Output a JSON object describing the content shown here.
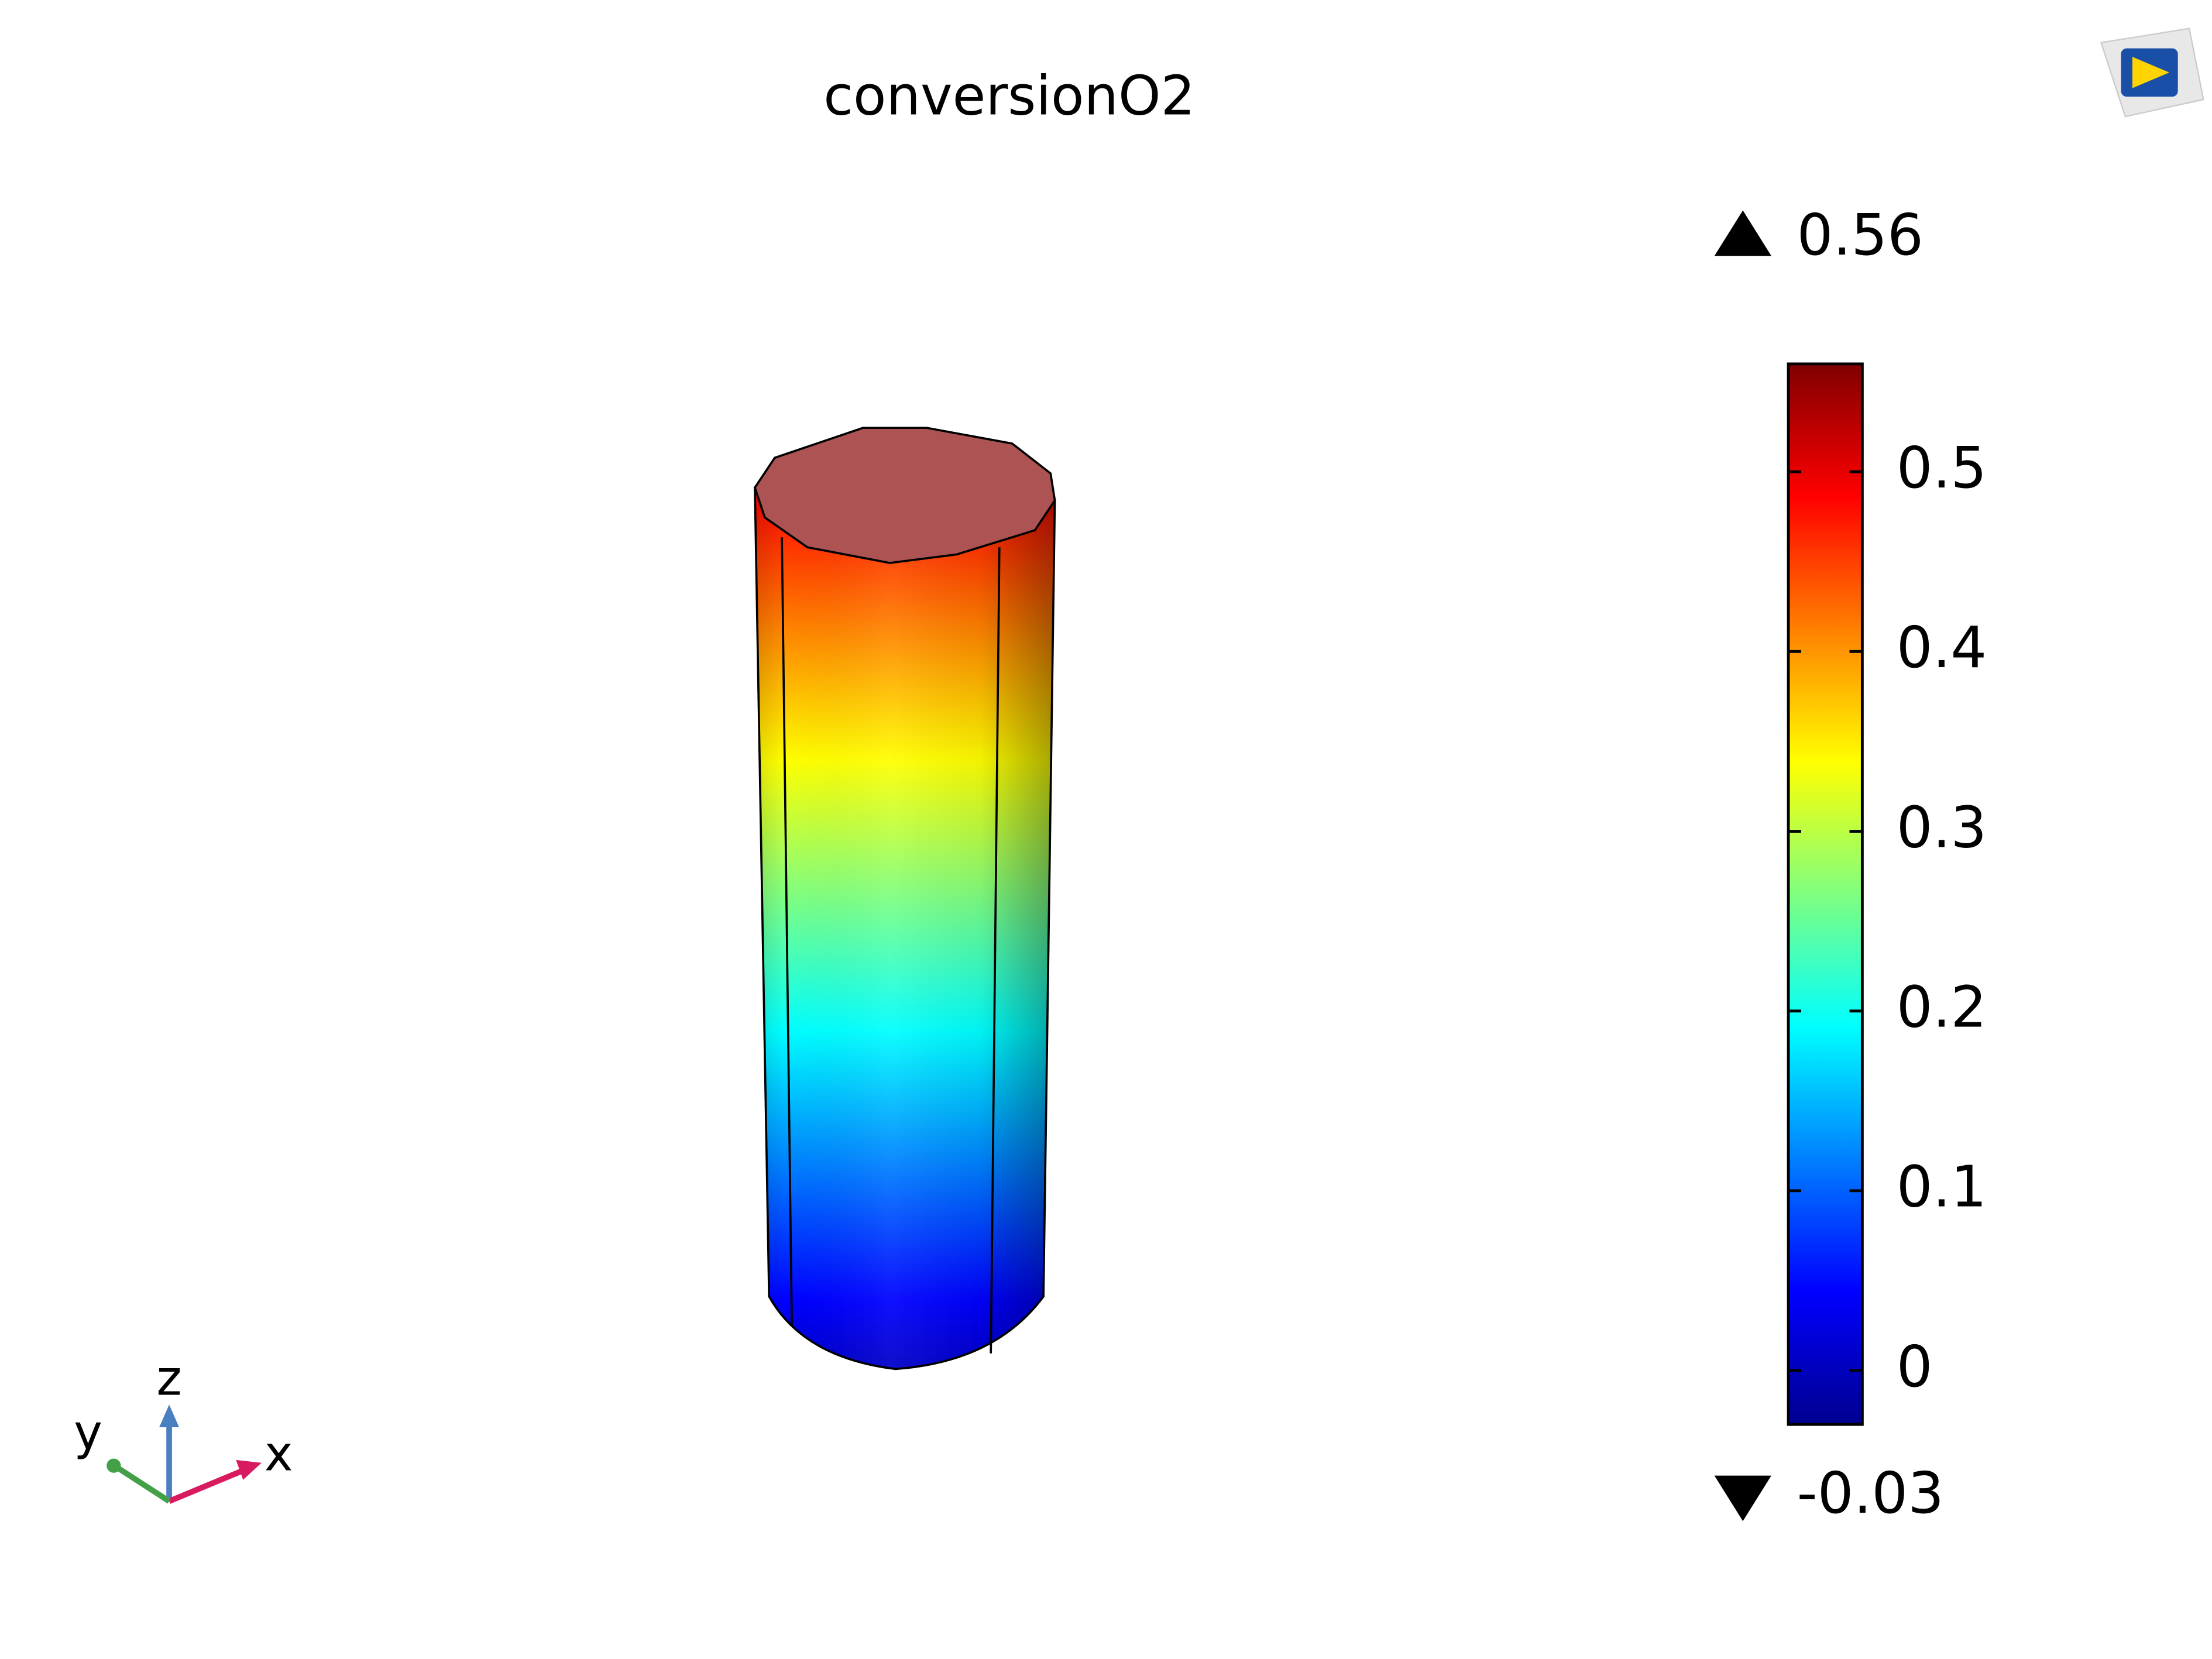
{
  "title": "conversionO2",
  "colorbar": {
    "max": 0.56,
    "min": -0.03,
    "ticks": [
      0,
      0.1,
      0.2,
      0.3,
      0.4,
      0.5
    ]
  },
  "axes": {
    "x": "x",
    "y": "y",
    "z": "z"
  }
}
